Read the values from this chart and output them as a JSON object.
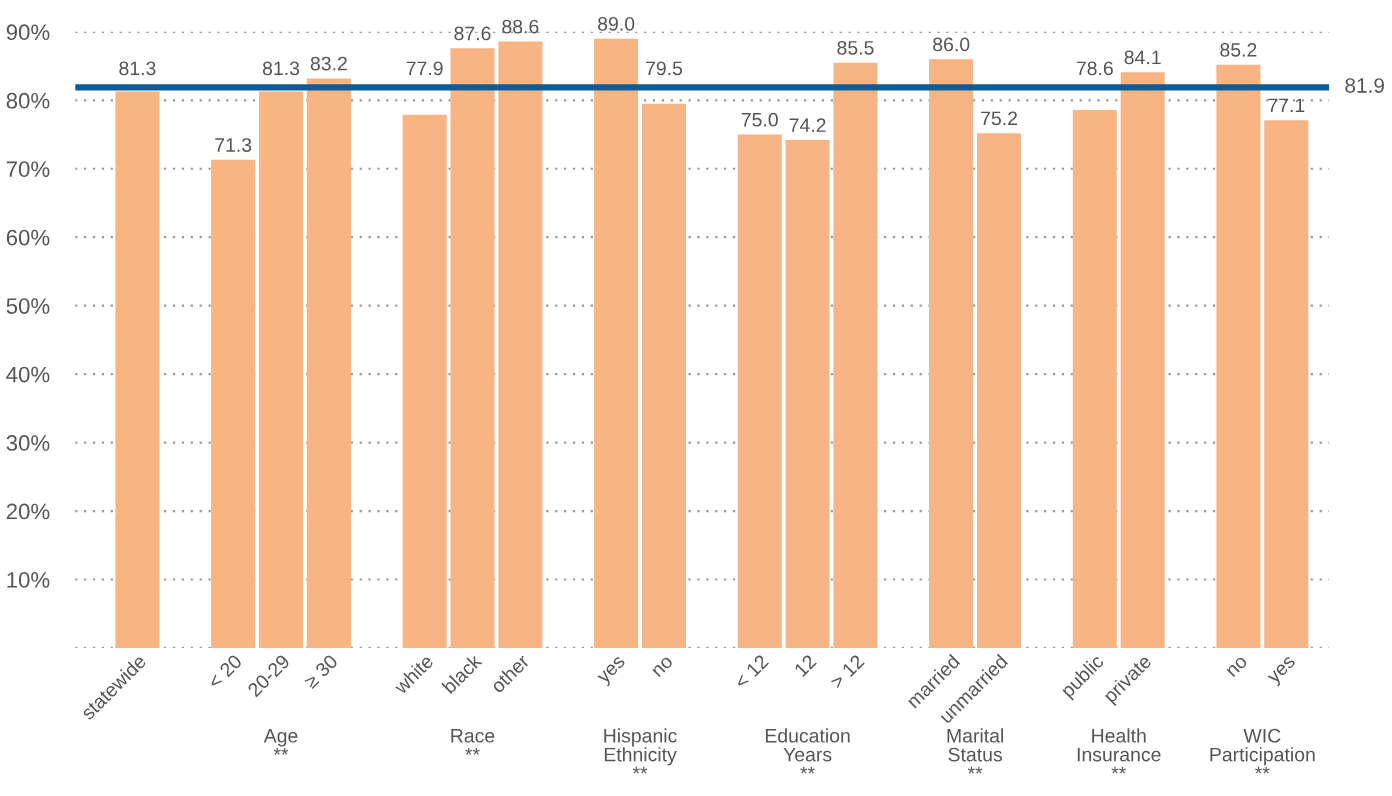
{
  "chart_data": {
    "type": "bar",
    "categories": [
      "statewide",
      null,
      "< 20",
      "20-29",
      "≥ 30",
      null,
      "white",
      "black",
      "other",
      null,
      "yes",
      "no",
      null,
      "< 12",
      "12",
      "> 12",
      null,
      "married",
      "unmarried",
      null,
      "public",
      "private",
      null,
      "no",
      "yes"
    ],
    "values": [
      81.3,
      null,
      71.3,
      81.3,
      83.2,
      null,
      77.9,
      87.6,
      88.6,
      null,
      89.0,
      79.5,
      null,
      75.0,
      74.2,
      85.5,
      null,
      86.0,
      75.2,
      null,
      78.6,
      84.1,
      null,
      85.2,
      77.1
    ],
    "color": "#f8b483",
    "value_labels": [
      "81.3",
      null,
      "71.3",
      "81.3",
      "83.2",
      null,
      "77.9",
      "87.6",
      "88.6",
      null,
      "89.0",
      "79.5",
      null,
      "75.0",
      "74.2",
      "85.5",
      null,
      "86.0",
      "75.2",
      null,
      "78.6",
      "84.1",
      null,
      "85.2",
      "77.1"
    ],
    "ylim": [
      0,
      90
    ],
    "yticks": [
      {
        "value": 0,
        "label": null
      },
      {
        "value": 10,
        "label": "10%"
      },
      {
        "value": 20,
        "label": "20%"
      },
      {
        "value": 30,
        "label": "30%"
      },
      {
        "value": 40,
        "label": "40%"
      },
      {
        "value": 50,
        "label": "50%"
      },
      {
        "value": 60,
        "label": "60%"
      },
      {
        "value": 70,
        "label": "70%"
      },
      {
        "value": 80,
        "label": "80%"
      },
      {
        "value": 90,
        "label": "90%"
      }
    ],
    "grid": "y",
    "ref_lines": [
      {
        "axis": "y",
        "value": 81.9,
        "label": "81.9",
        "color": "#0b5c99",
        "line_style": "solid"
      }
    ],
    "annotations": [
      "Age\n**",
      "Race\n**",
      "Hispanic\nEthnicity\n**",
      "Education\nYears\n**",
      "Marital\nStatus\n**",
      "Health\nInsurance\n**",
      "WIC\nParticipation\n**"
    ]
  }
}
